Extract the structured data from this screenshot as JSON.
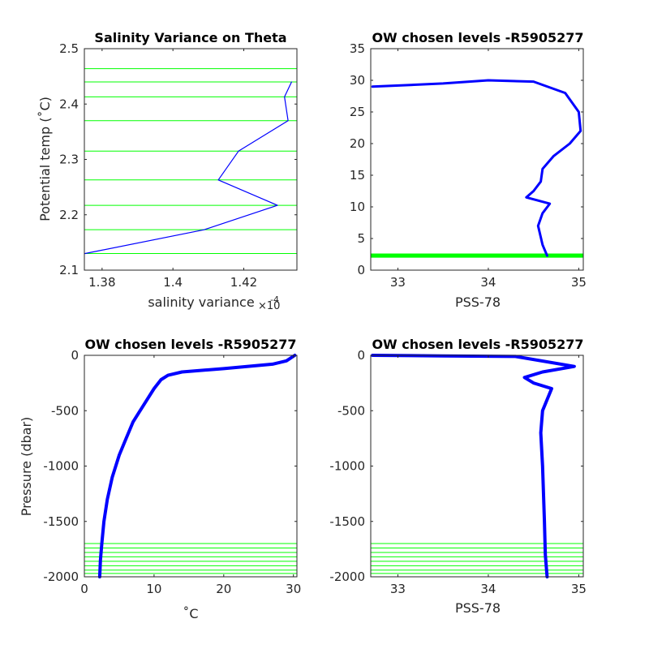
{
  "chart_data": [
    {
      "type": "line",
      "title": "Salinity Variance on Theta",
      "xlabel": "salinity variance",
      "xlabel_exponent": "×10",
      "xlabel_exponent_power": "-4",
      "ylabel": "Potential temp (˚C)",
      "xlim": [
        1.375,
        1.435
      ],
      "ylim": [
        2.1,
        2.5
      ],
      "xticks": [
        "1.38",
        "1.4",
        "1.42"
      ],
      "xtick_values": [
        1.38,
        1.4,
        1.42
      ],
      "yticks": [
        "2.1",
        "2.2",
        "2.3",
        "2.4",
        "2.5"
      ],
      "ytick_values": [
        2.1,
        2.2,
        2.3,
        2.4,
        2.5
      ],
      "series": [
        {
          "color": "#0000ff",
          "x": [
            1.4335,
            1.4315,
            1.4325,
            1.4185,
            1.4128,
            1.4295,
            1.4088,
            1.3752
          ],
          "y": [
            2.44,
            2.413,
            2.37,
            2.315,
            2.263,
            2.217,
            2.173,
            2.13
          ]
        }
      ],
      "hlines": {
        "color": "#00ff00",
        "values": [
          2.464,
          2.44,
          2.413,
          2.37,
          2.315,
          2.263,
          2.217,
          2.173,
          2.13
        ]
      }
    },
    {
      "type": "line",
      "title": "OW chosen levels -R5905277",
      "xlabel": "PSS-78",
      "ylabel": "",
      "xlim": [
        32.7,
        35.05
      ],
      "ylim": [
        0,
        35
      ],
      "xticks": [
        "33",
        "34",
        "35"
      ],
      "xtick_values": [
        33,
        34,
        35
      ],
      "yticks": [
        "0",
        "5",
        "10",
        "15",
        "20",
        "25",
        "30",
        "35"
      ],
      "ytick_values": [
        0,
        5,
        10,
        15,
        20,
        25,
        30,
        35
      ],
      "series": [
        {
          "color": "#0000ff",
          "x": [
            32.72,
            33.5,
            34.0,
            34.5,
            34.85,
            35.0,
            35.02,
            34.9,
            34.72,
            34.6,
            34.58,
            34.5,
            34.42,
            34.55,
            34.68,
            34.6,
            34.55,
            34.6,
            34.65
          ],
          "y": [
            29.0,
            29.5,
            30.0,
            29.8,
            28.0,
            25.0,
            22.0,
            20.0,
            18.0,
            16.0,
            14.0,
            12.5,
            11.5,
            11.0,
            10.5,
            9.0,
            7.0,
            4.0,
            2.3
          ]
        }
      ],
      "hlines": {
        "color": "#00ff00",
        "values": [
          2.1,
          2.2,
          2.3,
          2.4,
          2.5
        ]
      }
    },
    {
      "type": "line",
      "title": "OW chosen levels -R5905277",
      "xlabel": "˚C",
      "ylabel": "Pressure (dbar)",
      "xlim": [
        0,
        30.5
      ],
      "ylim": [
        -2000,
        0
      ],
      "xticks": [
        "0",
        "10",
        "20",
        "30"
      ],
      "xtick_values": [
        0,
        10,
        20,
        30
      ],
      "yticks": [
        "0",
        "-500",
        "-1000",
        "-1500",
        "-2000"
      ],
      "ytick_values": [
        0,
        -500,
        -1000,
        -1500,
        -2000
      ],
      "series": [
        {
          "color": "#0000ff",
          "x": [
            30.2,
            29.0,
            27.0,
            20.0,
            14.0,
            12.0,
            11.0,
            10.0,
            8.5,
            7.0,
            6.0,
            5.0,
            4.0,
            3.3,
            2.8,
            2.5,
            2.3,
            2.2
          ],
          "y": [
            0,
            -50,
            -80,
            -120,
            -150,
            -180,
            -220,
            -300,
            -450,
            -600,
            -750,
            -900,
            -1100,
            -1300,
            -1500,
            -1700,
            -1850,
            -2000
          ]
        }
      ],
      "hlines": {
        "color": "#00ff00",
        "values": [
          -1700,
          -1740,
          -1780,
          -1820,
          -1860,
          -1900,
          -1940,
          -1970,
          -2000
        ]
      }
    },
    {
      "type": "line",
      "title": "OW chosen levels -R5905277",
      "xlabel": "PSS-78",
      "ylabel": "",
      "xlim": [
        32.7,
        35.05
      ],
      "ylim": [
        -2000,
        0
      ],
      "xticks": [
        "33",
        "34",
        "35"
      ],
      "xtick_values": [
        33,
        34,
        35
      ],
      "yticks": [
        "0",
        "-500",
        "-1000",
        "-1500",
        "-2000"
      ],
      "ytick_values": [
        0,
        -500,
        -1000,
        -1500,
        -2000
      ],
      "series": [
        {
          "color": "#0000ff",
          "x": [
            32.72,
            33.5,
            34.3,
            34.95,
            34.6,
            34.4,
            34.5,
            34.7,
            34.6,
            34.58,
            34.6,
            34.62,
            34.63,
            34.65
          ],
          "y": [
            0,
            -5,
            -10,
            -100,
            -150,
            -200,
            -250,
            -300,
            -500,
            -700,
            -1000,
            -1500,
            -1800,
            -2000
          ]
        }
      ],
      "hlines": {
        "color": "#00ff00",
        "values": [
          -1700,
          -1740,
          -1780,
          -1820,
          -1860,
          -1900,
          -1940,
          -1970,
          -2000
        ]
      }
    }
  ]
}
